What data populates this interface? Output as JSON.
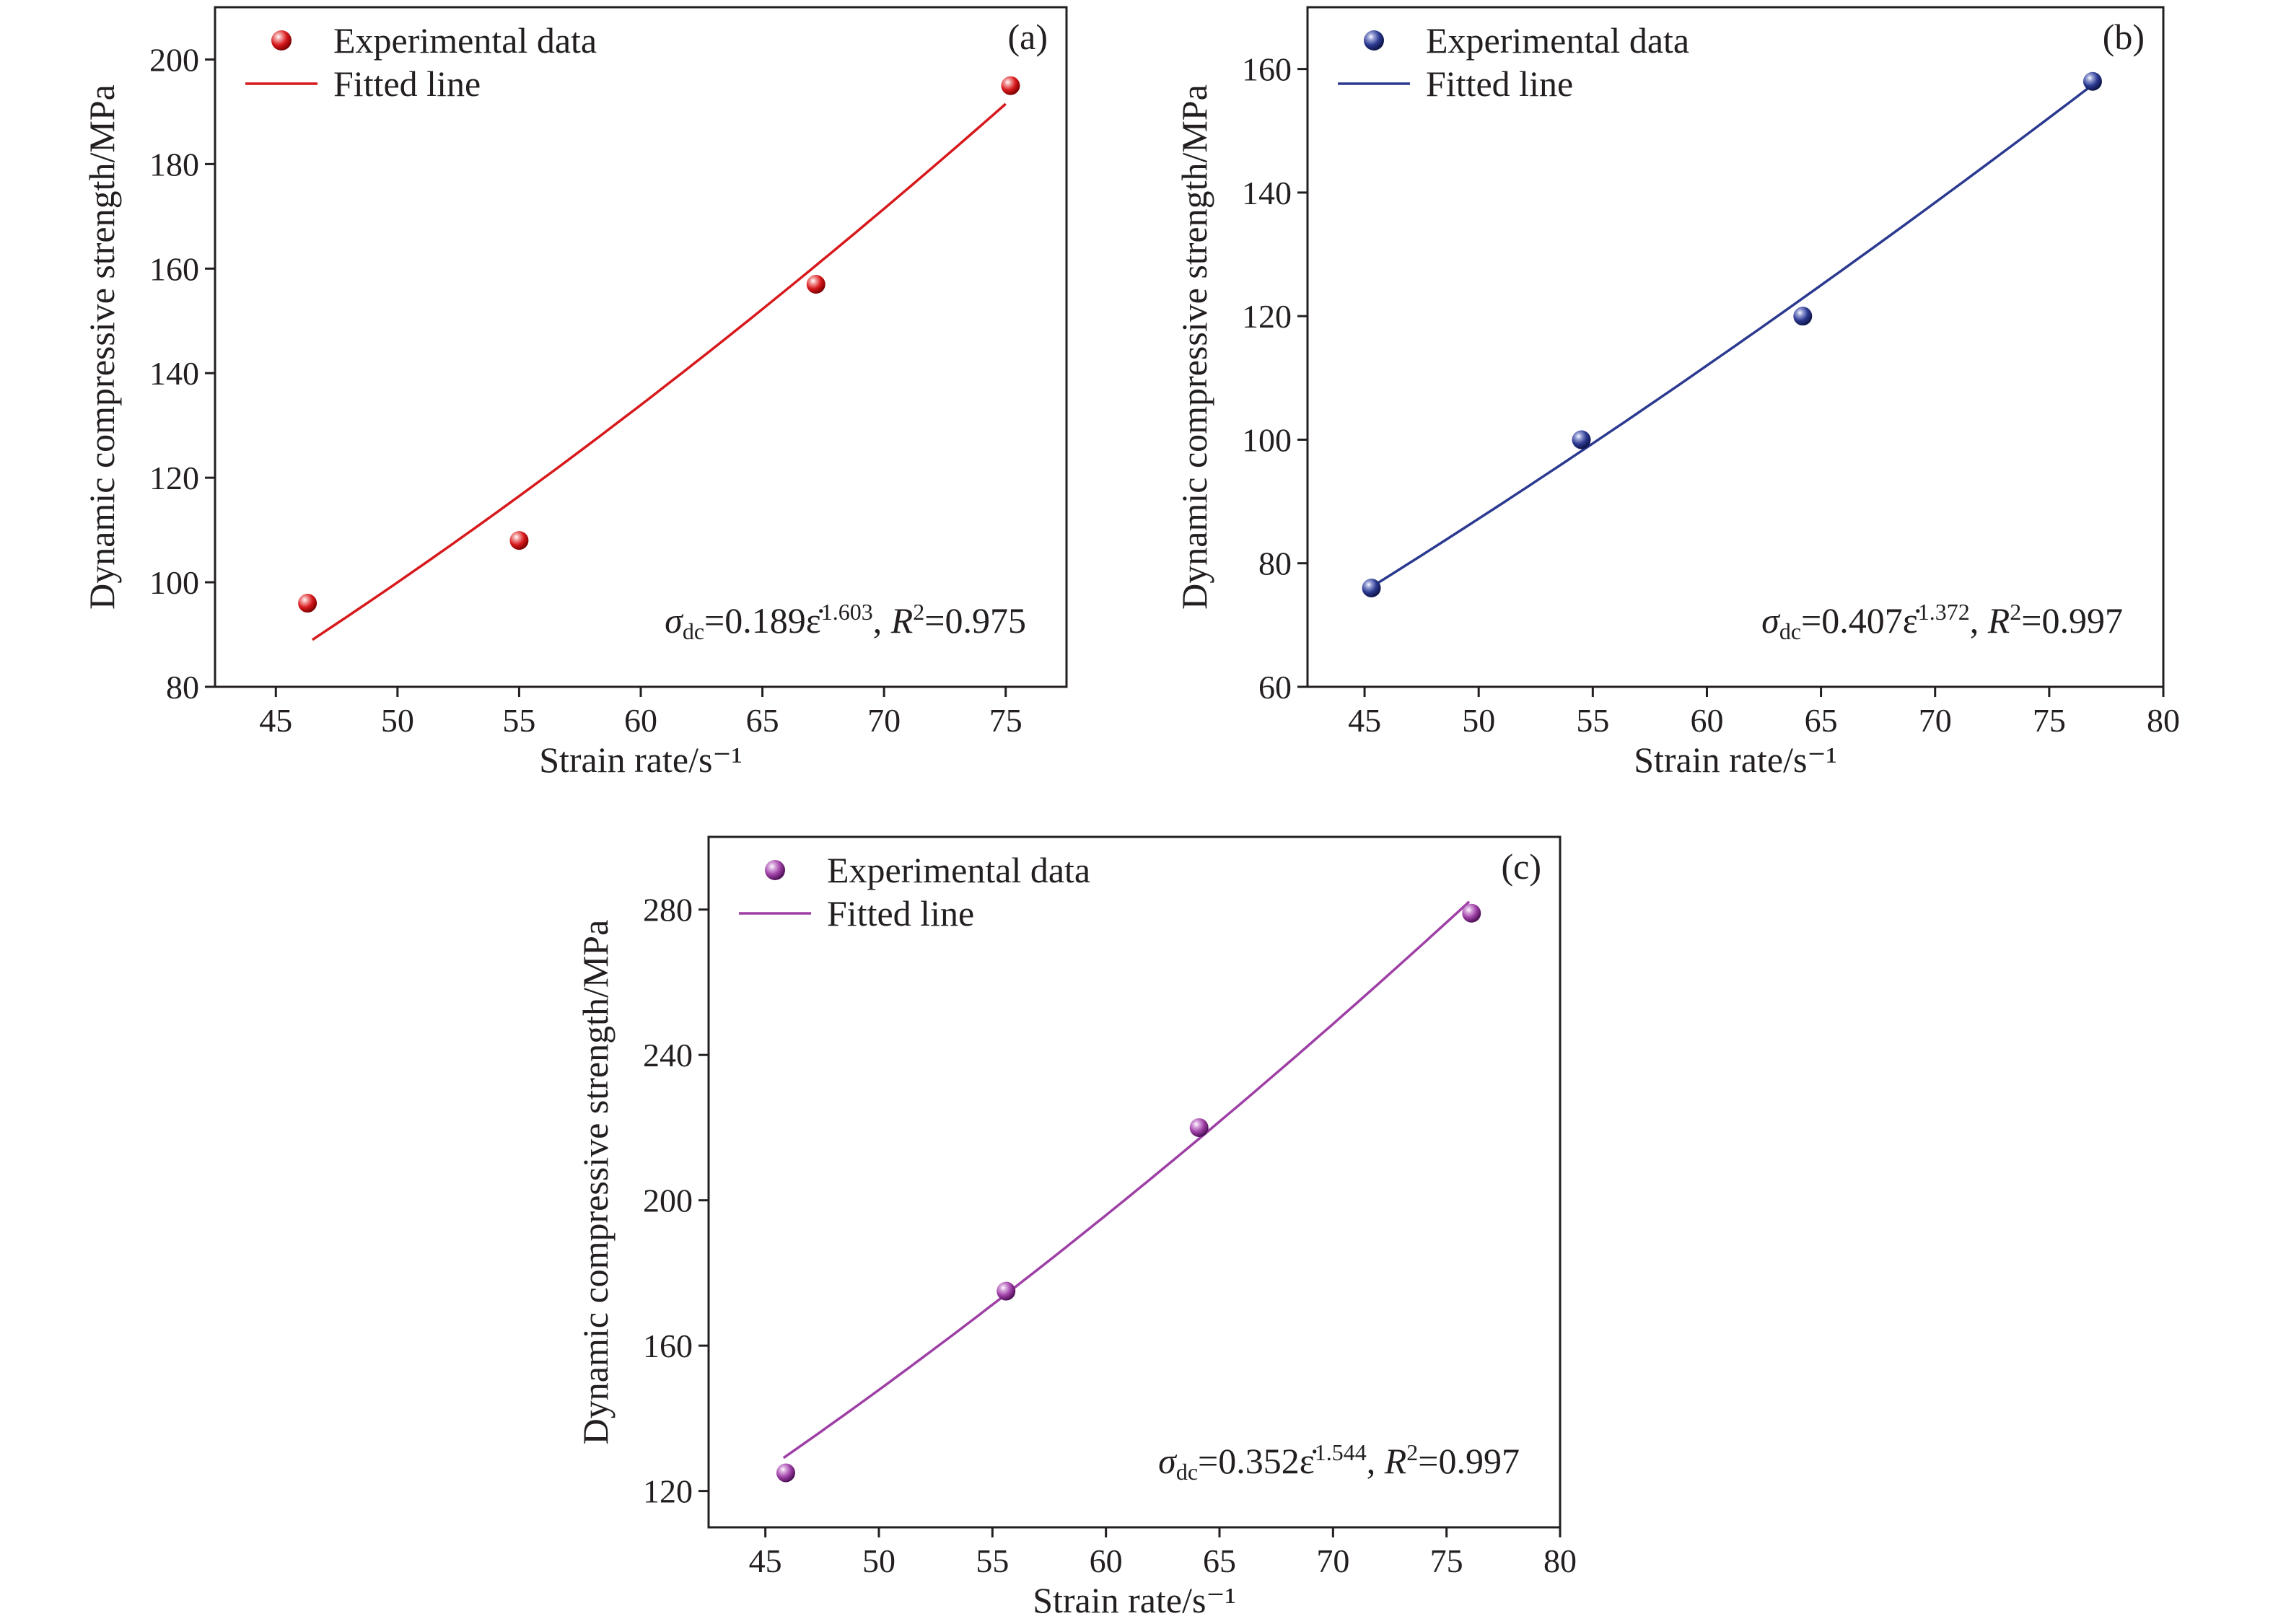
{
  "chart_data": [
    {
      "type": "scatter",
      "panel_label": "(a)",
      "xlabel": "Strain rate/s⁻¹",
      "ylabel": "Dynamic compressive strength/MPa",
      "xlim": [
        42.5,
        77.5
      ],
      "ylim": [
        80,
        210
      ],
      "xticks": [
        45,
        50,
        55,
        60,
        65,
        70,
        75
      ],
      "yticks": [
        80,
        100,
        120,
        140,
        160,
        180,
        200
      ],
      "legend_position": "top-left",
      "legend": [
        "Experimental data",
        "Fitted line"
      ],
      "color": "#d7191c",
      "equation": {
        "sigma": "σ",
        "sub": "dc",
        "coef": "=0.189",
        "epsdot": "ε̇",
        "exp": "1.603",
        "r_sep": ", ",
        "r": "R",
        "r_exp": "2",
        "r_val": "=0.975"
      },
      "fit": {
        "a": 0.189,
        "b": 1.603,
        "x_range": [
          46.5,
          75.0
        ]
      },
      "series": [
        {
          "name": "Experimental data",
          "x": [
            46.3,
            55.0,
            67.2,
            75.2
          ],
          "y": [
            96,
            108,
            157,
            195
          ]
        }
      ]
    },
    {
      "type": "scatter",
      "panel_label": "(b)",
      "xlabel": "Strain rate/s⁻¹",
      "ylabel": "Dynamic compressive strength/MPa",
      "xlim": [
        42.5,
        80
      ],
      "ylim": [
        60,
        170
      ],
      "xticks": [
        45,
        50,
        55,
        60,
        65,
        70,
        75,
        80
      ],
      "yticks": [
        60,
        80,
        100,
        120,
        140,
        160
      ],
      "legend_position": "top-left",
      "legend": [
        "Experimental data",
        "Fitted line"
      ],
      "color": "#2b3990",
      "equation": {
        "sigma": "σ",
        "sub": "dc",
        "coef": "=0.407",
        "epsdot": "ε̇",
        "exp": "1.372",
        "r_sep": ", ",
        "r": "R",
        "r_exp": "2",
        "r_val": "=0.997"
      },
      "fit": {
        "a": 0.407,
        "b": 1.372,
        "x_range": [
          45.3,
          77.0
        ]
      },
      "series": [
        {
          "name": "Experimental data",
          "x": [
            45.3,
            54.5,
            64.2,
            76.9
          ],
          "y": [
            76,
            100,
            120,
            158
          ]
        }
      ]
    },
    {
      "type": "scatter",
      "panel_label": "(c)",
      "xlabel": "Strain rate/s⁻¹",
      "ylabel": "Dynamic compressive strength/MPa",
      "xlim": [
        42.5,
        80
      ],
      "ylim": [
        110,
        300
      ],
      "xticks": [
        45,
        50,
        55,
        60,
        65,
        70,
        75,
        80
      ],
      "yticks": [
        120,
        160,
        200,
        240,
        280
      ],
      "legend_position": "top-left",
      "legend": [
        "Experimental data",
        "Fitted line"
      ],
      "color": "#9e3fa5",
      "equation": {
        "sigma": "σ",
        "sub": "dc",
        "coef": "=0.352",
        "epsdot": "ε̇",
        "exp": "1.544",
        "r_sep": ", ",
        "r": "R",
        "r_exp": "2",
        "r_val": "=0.997"
      },
      "fit": {
        "a": 0.352,
        "b": 1.544,
        "x_range": [
          45.8,
          76.0
        ]
      },
      "series": [
        {
          "name": "Experimental data",
          "x": [
            45.9,
            55.6,
            64.1,
            76.1
          ],
          "y": [
            125,
            175,
            220,
            279
          ]
        }
      ]
    }
  ]
}
